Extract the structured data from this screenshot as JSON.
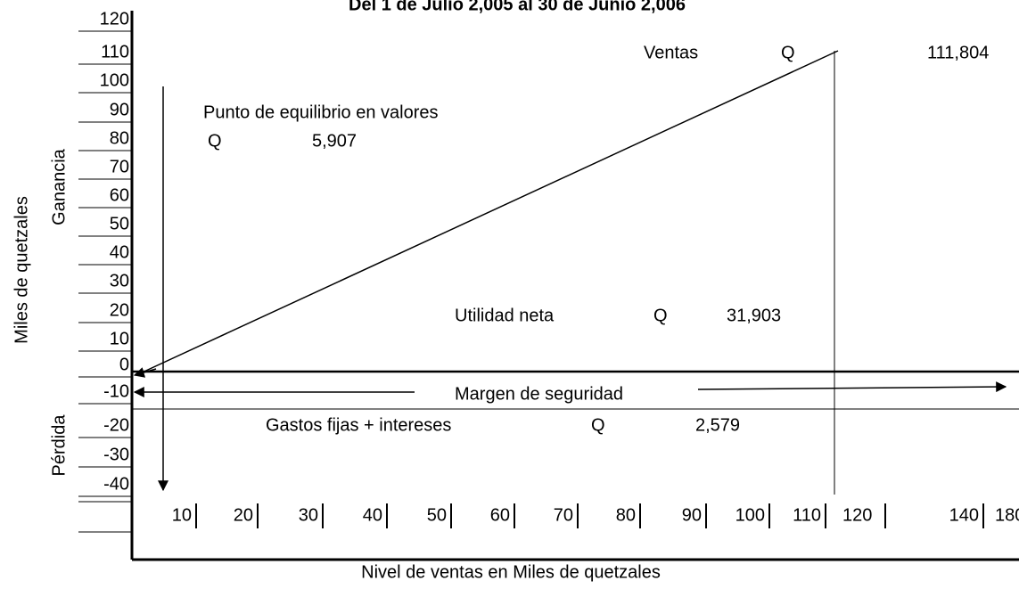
{
  "header": {
    "title": "Del 1 de Julio 2,005 al 30 de Junio 2,006"
  },
  "y_axis": {
    "title": "Miles de quetzales",
    "upper_label": "Ganancia",
    "lower_label": "Pérdida",
    "labels": [
      "120",
      "110",
      "100",
      "90",
      "80",
      "70",
      "60",
      "50",
      "40",
      "30",
      "20",
      "10",
      "0",
      "-10",
      "-20",
      "-30",
      "-40"
    ]
  },
  "x_axis": {
    "title": "Nivel de ventas en Miles de quetzales",
    "labels": [
      "10",
      "20",
      "30",
      "40",
      "50",
      "60",
      "70",
      "80",
      "90",
      "100",
      "110",
      "120",
      "140",
      "180"
    ]
  },
  "annotations": {
    "ventas": {
      "label": "Ventas",
      "currency": "Q",
      "amount": "111,804"
    },
    "equilibrio": {
      "label": "Punto de equilibrio en valores",
      "currency": "Q",
      "amount": "5,907"
    },
    "utilidad": {
      "label": "Utilidad neta",
      "currency": "Q",
      "amount": "31,903"
    },
    "margen": {
      "label": "Margen de seguridad"
    },
    "gastos": {
      "label": "Gastos fijas + intereses",
      "currency": "Q",
      "amount": "2,579"
    }
  }
}
